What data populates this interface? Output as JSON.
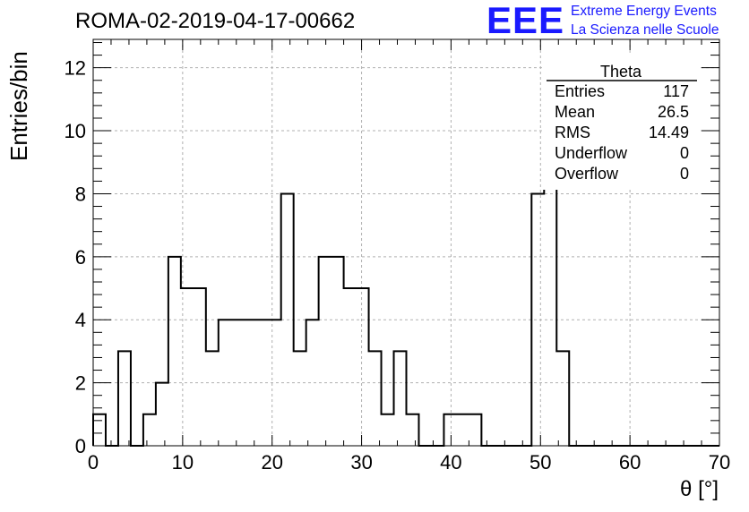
{
  "header": {
    "title": "ROMA-02-2019-04-17-00662",
    "logo_mark": "EEE",
    "logo_line1": "Extreme Energy Events",
    "logo_line2": "La Scienza nelle Scuole",
    "logo_color": "#1a1aff"
  },
  "stats_box": {
    "title": "Theta",
    "rows": [
      {
        "label": "Entries",
        "value": "117"
      },
      {
        "label": "Mean",
        "value": "26.5"
      },
      {
        "label": "RMS",
        "value": "14.49"
      },
      {
        "label": "Underflow",
        "value": "0"
      },
      {
        "label": "Overflow",
        "value": "0"
      }
    ]
  },
  "chart_data": {
    "type": "histogram",
    "title": "ROMA-02-2019-04-17-00662",
    "xlabel": "θ [°]",
    "ylabel": "Entries/bin",
    "xlim": [
      0,
      70
    ],
    "ylim": [
      0,
      12.9
    ],
    "x_ticks": [
      0,
      10,
      20,
      30,
      40,
      50,
      60,
      70
    ],
    "y_ticks": [
      0,
      2,
      4,
      6,
      8,
      10,
      12
    ],
    "grid": true,
    "bin_width": 1.4,
    "bin_start": 0,
    "values": [
      1,
      0,
      3,
      0,
      1,
      2,
      6,
      5,
      5,
      3,
      4,
      4,
      4,
      4,
      4,
      8,
      3,
      4,
      6,
      6,
      5,
      5,
      3,
      1,
      3,
      1,
      0,
      0,
      1,
      1,
      1,
      0,
      0,
      0,
      0,
      8,
      12,
      3,
      0,
      0,
      0,
      0,
      0,
      0,
      0,
      0,
      0,
      0,
      0,
      0
    ],
    "line_color": "#000000",
    "grid_color": "#b0b0b0"
  }
}
